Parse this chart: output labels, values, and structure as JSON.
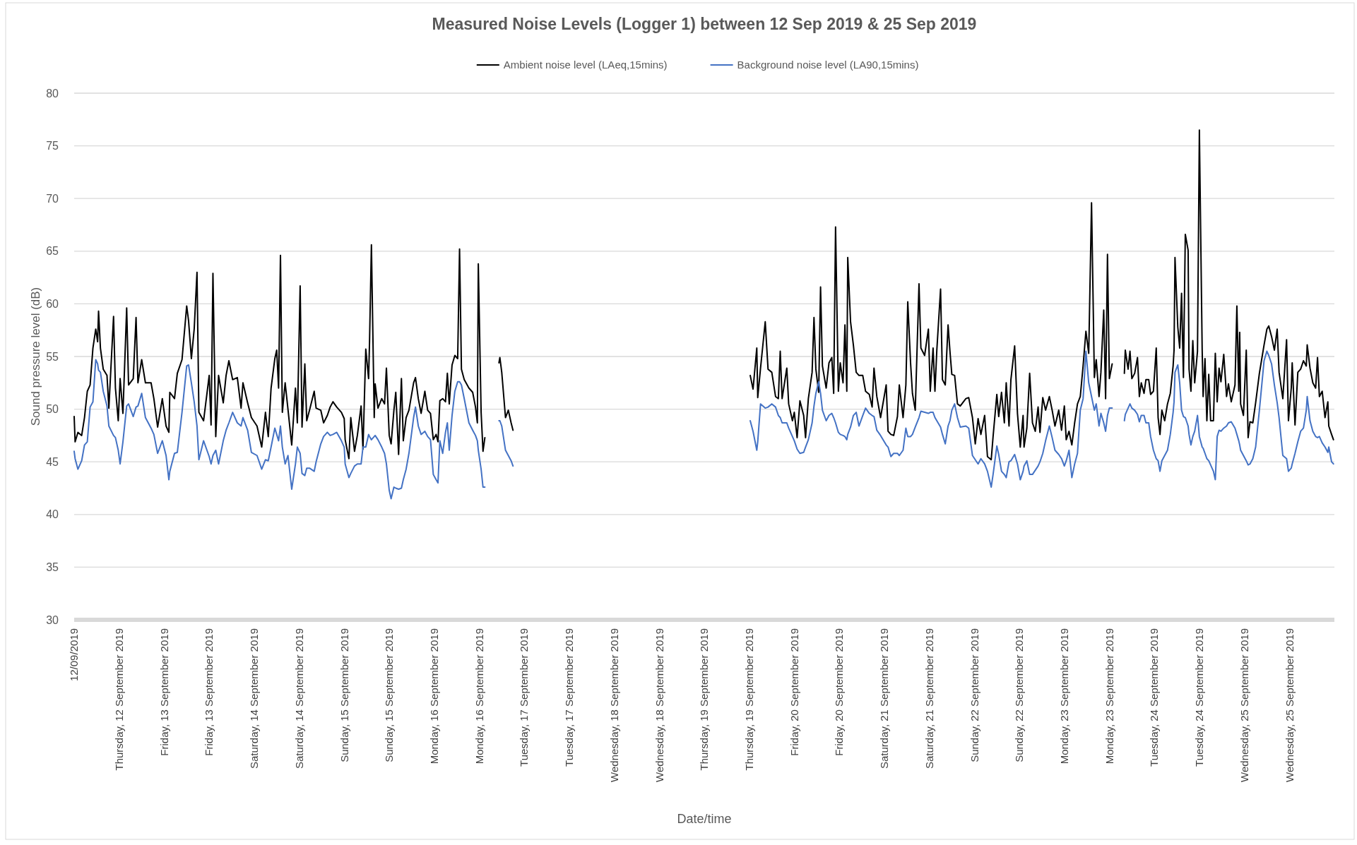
{
  "chart_data": {
    "type": "line",
    "title": "Measured Noise Levels (Logger 1) between 12 Sep 2019 & 25 Sep 2019",
    "xlabel": "Date/time",
    "ylabel": "Sound pressure level (dB)",
    "legend": "top",
    "grid": "y",
    "ylim": [
      30,
      80
    ],
    "yticks": [
      30,
      35,
      40,
      45,
      50,
      55,
      60,
      65,
      70,
      75,
      80
    ],
    "xlim": [
      "2019-09-12T00:00",
      "2019-09-26T00:00"
    ],
    "xticks": [
      {
        "value": "2019-09-12T00:00",
        "label": "12/09/2019"
      },
      {
        "value": "2019-09-12T12:00",
        "label": "Thursday, 12 September 2019"
      },
      {
        "value": "2019-09-13T00:00",
        "label": "Friday, 13 September 2019"
      },
      {
        "value": "2019-09-13T12:00",
        "label": "Friday, 13 September 2019"
      },
      {
        "value": "2019-09-14T00:00",
        "label": "Saturday, 14 September 2019"
      },
      {
        "value": "2019-09-14T12:00",
        "label": "Saturday, 14 September 2019"
      },
      {
        "value": "2019-09-15T00:00",
        "label": "Sunday, 15 September 2019"
      },
      {
        "value": "2019-09-15T12:00",
        "label": "Sunday, 15 September 2019"
      },
      {
        "value": "2019-09-16T00:00",
        "label": "Monday, 16 September 2019"
      },
      {
        "value": "2019-09-16T12:00",
        "label": "Monday, 16 September 2019"
      },
      {
        "value": "2019-09-17T00:00",
        "label": "Tuesday, 17 September 2019"
      },
      {
        "value": "2019-09-17T12:00",
        "label": "Tuesday, 17 September 2019"
      },
      {
        "value": "2019-09-18T00:00",
        "label": "Wednesday, 18 September 2019"
      },
      {
        "value": "2019-09-18T12:00",
        "label": "Wednesday, 18 September 2019"
      },
      {
        "value": "2019-09-19T00:00",
        "label": "Thursday, 19 September 2019"
      },
      {
        "value": "2019-09-19T12:00",
        "label": "Thursday, 19 September 2019"
      },
      {
        "value": "2019-09-20T00:00",
        "label": "Friday, 20 September 2019"
      },
      {
        "value": "2019-09-20T12:00",
        "label": "Friday, 20 September 2019"
      },
      {
        "value": "2019-09-21T00:00",
        "label": "Saturday, 21 September 2019"
      },
      {
        "value": "2019-09-21T12:00",
        "label": "Saturday, 21 September 2019"
      },
      {
        "value": "2019-09-22T00:00",
        "label": "Sunday, 22 September 2019"
      },
      {
        "value": "2019-09-22T12:00",
        "label": "Sunday, 22 September 2019"
      },
      {
        "value": "2019-09-23T00:00",
        "label": "Monday, 23 September 2019"
      },
      {
        "value": "2019-09-23T12:00",
        "label": "Monday, 23 September 2019"
      },
      {
        "value": "2019-09-24T00:00",
        "label": "Tuesday, 24 September 2019"
      },
      {
        "value": "2019-09-24T12:00",
        "label": "Tuesday, 24 September 2019"
      },
      {
        "value": "2019-09-25T00:00",
        "label": "Wednesday, 25 September 2019"
      },
      {
        "value": "2019-09-25T12:00",
        "label": "Wednesday, 25 September 2019"
      }
    ],
    "x": [
      "2019-09-12T00:00",
      "2019-09-12T00:15",
      "2019-09-12T01:00",
      "2019-09-12T02:00",
      "2019-09-12T02:45",
      "2019-09-12T03:30",
      "2019-09-12T04:15",
      "2019-09-12T05:00",
      "2019-09-12T05:45",
      "2019-09-12T06:15",
      "2019-09-12T06:30",
      "2019-09-12T07:00",
      "2019-09-12T07:45",
      "2019-09-12T08:45",
      "2019-09-12T09:15",
      "2019-09-12T10:30",
      "2019-09-12T11:00",
      "2019-09-12T11:45",
      "2019-09-12T12:15",
      "2019-09-12T13:00",
      "2019-09-12T14:00",
      "2019-09-12T14:30",
      "2019-09-12T15:45",
      "2019-09-12T16:30",
      "2019-09-12T17:00",
      "2019-09-12T18:00",
      "2019-09-12T19:00",
      "2019-09-12T20:30",
      "2019-09-12T21:15",
      "2019-09-12T22:15",
      "2019-09-12T23:30",
      "2019-09-13T00:30",
      "2019-09-13T01:15",
      "2019-09-13T01:30",
      "2019-09-13T02:45",
      "2019-09-13T03:30",
      "2019-09-13T04:45",
      "2019-09-13T06:00",
      "2019-09-13T06:30",
      "2019-09-13T07:15",
      "2019-09-13T08:00",
      "2019-09-13T08:45",
      "2019-09-13T09:15",
      "2019-09-13T10:30",
      "2019-09-13T12:00",
      "2019-09-13T12:30",
      "2019-09-13T13:00",
      "2019-09-13T13:45",
      "2019-09-13T14:30",
      "2019-09-13T15:45",
      "2019-09-13T16:30",
      "2019-09-13T17:15",
      "2019-09-13T18:15",
      "2019-09-13T19:30",
      "2019-09-13T20:30",
      "2019-09-13T21:00",
      "2019-09-13T22:15",
      "2019-09-13T23:15",
      "2019-09-14T00:45",
      "2019-09-14T02:00",
      "2019-09-14T03:00",
      "2019-09-14T03:45",
      "2019-09-14T04:30",
      "2019-09-14T05:30",
      "2019-09-14T06:00",
      "2019-09-14T06:30",
      "2019-09-14T07:00",
      "2019-09-14T07:30",
      "2019-09-14T08:15",
      "2019-09-14T09:00",
      "2019-09-14T10:00",
      "2019-09-14T11:00",
      "2019-09-14T11:30",
      "2019-09-14T12:15",
      "2019-09-14T12:45",
      "2019-09-14T13:30",
      "2019-09-14T14:00",
      "2019-09-14T14:45",
      "2019-09-14T16:00",
      "2019-09-14T16:30",
      "2019-09-14T17:45",
      "2019-09-14T18:30",
      "2019-09-14T19:30",
      "2019-09-14T20:15",
      "2019-09-14T21:00",
      "2019-09-14T22:00",
      "2019-09-14T23:15",
      "2019-09-15T00:00",
      "2019-09-15T00:15",
      "2019-09-15T01:15",
      "2019-09-15T01:45",
      "2019-09-15T02:45",
      "2019-09-15T03:30",
      "2019-09-15T04:30",
      "2019-09-15T05:00",
      "2019-09-15T05:45",
      "2019-09-15T06:30",
      "2019-09-15T06:45",
      "2019-09-15T07:15",
      "2019-09-15T08:00",
      "2019-09-15T08:15",
      "2019-09-15T09:00",
      "2019-09-15T10:00",
      "2019-09-15T10:45",
      "2019-09-15T11:15",
      "2019-09-15T12:00",
      "2019-09-15T12:30",
      "2019-09-15T13:15",
      "2019-09-15T13:45",
      "2019-09-15T14:30",
      "2019-09-15T15:15",
      "2019-09-15T15:45",
      "2019-09-15T16:30",
      "2019-09-15T17:15",
      "2019-09-15T18:30",
      "2019-09-15T19:00",
      "2019-09-15T19:45",
      "2019-09-15T20:30",
      "2019-09-15T21:30",
      "2019-09-15T22:15",
      "2019-09-15T23:00",
      "2019-09-15T23:45",
      "2019-09-16T00:30",
      "2019-09-16T01:00",
      "2019-09-16T01:30",
      "2019-09-16T02:15",
      "2019-09-16T03:00",
      "2019-09-16T03:30",
      "2019-09-16T04:00",
      "2019-09-16T04:45",
      "2019-09-16T05:30",
      "2019-09-16T06:15",
      "2019-09-16T06:45",
      "2019-09-16T07:15",
      "2019-09-16T08:00",
      "2019-09-16T09:15",
      "2019-09-16T10:15",
      "2019-09-16T11:00",
      "2019-09-16T11:30",
      "2019-09-16T11:45",
      "2019-09-16T12:30",
      "2019-09-16T13:00",
      "2019-09-16T13:30",
      "2019-09-16T15:00",
      "2019-09-16T17:15",
      "2019-09-16T17:30",
      "2019-09-16T18:00",
      "2019-09-16T19:00",
      "2019-09-16T19:45",
      "2019-09-16T20:30",
      "2019-09-16T21:00",
      "2019-09-18T06:00",
      "2019-09-19T12:15",
      "2019-09-19T13:00",
      "2019-09-19T14:00",
      "2019-09-19T14:15",
      "2019-09-19T15:00",
      "2019-09-19T16:15",
      "2019-09-19T17:00",
      "2019-09-19T18:00",
      "2019-09-19T19:00",
      "2019-09-19T19:45",
      "2019-09-19T20:15",
      "2019-09-19T20:45",
      "2019-09-19T22:00",
      "2019-09-19T22:30",
      "2019-09-19T23:30",
      "2019-09-20T00:00",
      "2019-09-20T00:45",
      "2019-09-20T01:30",
      "2019-09-20T02:30",
      "2019-09-20T03:00",
      "2019-09-20T03:45",
      "2019-09-20T04:45",
      "2019-09-20T05:15",
      "2019-09-20T05:45",
      "2019-09-20T06:30",
      "2019-09-20T07:00",
      "2019-09-20T07:30",
      "2019-09-20T08:30",
      "2019-09-20T09:15",
      "2019-09-20T10:00",
      "2019-09-20T10:30",
      "2019-09-20T11:00",
      "2019-09-20T11:45",
      "2019-09-20T12:15",
      "2019-09-20T13:00",
      "2019-09-20T13:30",
      "2019-09-20T14:00",
      "2019-09-20T14:15",
      "2019-09-20T15:00",
      "2019-09-20T15:45",
      "2019-09-20T16:30",
      "2019-09-20T17:15",
      "2019-09-20T18:15",
      "2019-09-20T19:00",
      "2019-09-20T20:00",
      "2019-09-20T20:45",
      "2019-09-20T21:15",
      "2019-09-20T22:00",
      "2019-09-20T23:00",
      "2019-09-21T00:30",
      "2019-09-21T01:00",
      "2019-09-21T01:45",
      "2019-09-21T02:30",
      "2019-09-21T03:30",
      "2019-09-21T04:00",
      "2019-09-21T05:00",
      "2019-09-21T05:45",
      "2019-09-21T06:15",
      "2019-09-21T07:00",
      "2019-09-21T07:30",
      "2019-09-21T08:15",
      "2019-09-21T09:15",
      "2019-09-21T09:45",
      "2019-09-21T10:45",
      "2019-09-21T11:45",
      "2019-09-21T12:15",
      "2019-09-21T13:00",
      "2019-09-21T13:30",
      "2019-09-21T14:00",
      "2019-09-21T15:00",
      "2019-09-21T15:30",
      "2019-09-21T16:15",
      "2019-09-21T17:00",
      "2019-09-21T17:30",
      "2019-09-21T18:00",
      "2019-09-21T18:45",
      "2019-09-21T19:30",
      "2019-09-21T20:15",
      "2019-09-21T21:45",
      "2019-09-21T22:30",
      "2019-09-21T23:30",
      "2019-09-22T00:15",
      "2019-09-22T01:00",
      "2019-09-22T01:45",
      "2019-09-22T02:45",
      "2019-09-22T03:30",
      "2019-09-22T04:30",
      "2019-09-22T05:00",
      "2019-09-22T06:00",
      "2019-09-22T06:30",
      "2019-09-22T07:15",
      "2019-09-22T08:00",
      "2019-09-22T08:30",
      "2019-09-22T09:15",
      "2019-09-22T09:45",
      "2019-09-22T10:45",
      "2019-09-22T11:30",
      "2019-09-22T12:15",
      "2019-09-22T13:00",
      "2019-09-22T13:15",
      "2019-09-22T14:00",
      "2019-09-22T14:45",
      "2019-09-22T15:30",
      "2019-09-22T16:15",
      "2019-09-22T17:00",
      "2019-09-22T17:30",
      "2019-09-22T18:15",
      "2019-09-22T19:00",
      "2019-09-22T20:00",
      "2019-09-22T20:45",
      "2019-09-22T21:30",
      "2019-09-22T22:30",
      "2019-09-22T23:15",
      "2019-09-23T00:00",
      "2019-09-23T00:30",
      "2019-09-23T01:15",
      "2019-09-23T02:00",
      "2019-09-23T02:45",
      "2019-09-23T03:30",
      "2019-09-23T04:15",
      "2019-09-23T05:00",
      "2019-09-23T05:45",
      "2019-09-23T06:30",
      "2019-09-23T07:15",
      "2019-09-23T08:00",
      "2019-09-23T08:30",
      "2019-09-23T09:15",
      "2019-09-23T09:45",
      "2019-09-23T10:30",
      "2019-09-23T11:00",
      "2019-09-23T11:30",
      "2019-09-23T12:00",
      "2019-09-23T12:45",
      "2019-09-23T14:00",
      "2019-09-23T16:00",
      "2019-09-23T16:15",
      "2019-09-23T17:00",
      "2019-09-23T17:30",
      "2019-09-23T18:00",
      "2019-09-23T18:45",
      "2019-09-23T19:30",
      "2019-09-23T20:00",
      "2019-09-23T20:30",
      "2019-09-23T21:15",
      "2019-09-23T21:45",
      "2019-09-23T22:30",
      "2019-09-23T23:00",
      "2019-09-23T23:45",
      "2019-09-24T00:30",
      "2019-09-24T01:00",
      "2019-09-24T01:30",
      "2019-09-24T02:00",
      "2019-09-24T02:45",
      "2019-09-24T03:30",
      "2019-09-24T04:15",
      "2019-09-24T05:00",
      "2019-09-24T05:15",
      "2019-09-24T05:30",
      "2019-09-24T06:15",
      "2019-09-24T06:45",
      "2019-09-24T07:15",
      "2019-09-24T07:45",
      "2019-09-24T08:15",
      "2019-09-24T09:00",
      "2019-09-24T09:15",
      "2019-09-24T09:45",
      "2019-09-24T10:15",
      "2019-09-24T10:45",
      "2019-09-24T11:30",
      "2019-09-24T12:00",
      "2019-09-24T12:45",
      "2019-09-24T13:00",
      "2019-09-24T13:30",
      "2019-09-24T14:00",
      "2019-09-24T14:30",
      "2019-09-24T15:00",
      "2019-09-24T15:45",
      "2019-09-24T16:15",
      "2019-09-24T16:45",
      "2019-09-24T17:15",
      "2019-09-24T17:45",
      "2019-09-24T18:30",
      "2019-09-24T19:15",
      "2019-09-24T19:45",
      "2019-09-24T20:30",
      "2019-09-24T21:30",
      "2019-09-24T22:00",
      "2019-09-24T22:30",
      "2019-09-24T22:45",
      "2019-09-24T23:00",
      "2019-09-24T23:45",
      "2019-09-25T00:30",
      "2019-09-25T01:00",
      "2019-09-25T01:30",
      "2019-09-25T02:15",
      "2019-09-25T03:00",
      "2019-09-25T04:00",
      "2019-09-25T05:15",
      "2019-09-25T06:00",
      "2019-09-25T06:30",
      "2019-09-25T07:15",
      "2019-09-25T08:00",
      "2019-09-25T08:45",
      "2019-09-25T09:15",
      "2019-09-25T10:15",
      "2019-09-25T11:15",
      "2019-09-25T11:45",
      "2019-09-25T12:30",
      "2019-09-25T12:45",
      "2019-09-25T13:30",
      "2019-09-25T14:15",
      "2019-09-25T15:00",
      "2019-09-25T15:45",
      "2019-09-25T16:30",
      "2019-09-25T16:45",
      "2019-09-25T17:30",
      "2019-09-25T18:15",
      "2019-09-25T19:00",
      "2019-09-25T19:30",
      "2019-09-25T20:00",
      "2019-09-25T20:45",
      "2019-09-25T21:30",
      "2019-09-25T22:15",
      "2019-09-25T22:30",
      "2019-09-25T23:15",
      "2019-09-25T23:45"
    ],
    "series": [
      {
        "name": "Ambient noise level (LAeq,15mins)",
        "color": "#000000",
        "values": [
          49.3,
          46.9,
          47.8,
          47.5,
          49.2,
          51.7,
          52.3,
          55.8,
          57.6,
          56.4,
          59.3,
          55.8,
          53.8,
          53.2,
          50.1,
          58.8,
          52.0,
          48.9,
          52.9,
          49.6,
          59.6,
          52.3,
          52.9,
          58.7,
          52.5,
          54.7,
          52.5,
          52.5,
          51.0,
          48.3,
          51.0,
          48.4,
          47.8,
          51.6,
          51.0,
          53.4,
          54.7,
          59.8,
          58.4,
          54.8,
          57.6,
          63.0,
          49.7,
          48.9,
          53.2,
          48.5,
          62.9,
          47.4,
          53.2,
          50.6,
          53.2,
          54.6,
          52.8,
          53.0,
          50.1,
          52.5,
          50.6,
          49.2,
          48.4,
          46.4,
          49.7,
          47.4,
          52.0,
          54.8,
          55.6,
          52.0,
          64.6,
          49.7,
          52.5,
          50.0,
          46.6,
          52.0,
          48.7,
          61.7,
          48.3,
          54.3,
          48.9,
          49.9,
          51.7,
          50.1,
          49.9,
          48.7,
          49.4,
          50.2,
          50.7,
          50.2,
          49.7,
          49.1,
          47.1,
          45.3,
          49.2,
          46.0,
          47.5,
          50.3,
          46.2,
          55.7,
          52.9,
          56.4,
          65.6,
          49.2,
          52.4,
          50.1,
          51.0,
          50.5,
          53.9,
          47.5,
          46.7,
          49.9,
          51.6,
          45.7,
          52.9,
          47.0,
          49.2,
          49.9,
          52.5,
          53.0,
          51.0,
          49.6,
          51.7,
          49.9,
          49.6,
          47.1,
          47.6,
          46.9,
          50.8,
          51.0,
          50.7,
          53.4,
          50.5,
          54.2,
          55.1,
          54.8,
          65.2,
          53.8,
          52.8,
          52.0,
          51.6,
          50.2,
          48.7,
          63.8,
          49.7,
          46.0,
          47.3,
          null,
          54.4,
          54.9,
          53.5,
          49.2,
          49.9,
          48.7,
          48.0,
          null,
          53.2,
          51.9,
          55.8,
          51.1,
          53.9,
          58.3,
          53.8,
          53.5,
          51.2,
          51.0,
          55.5,
          51.0,
          53.9,
          50.5,
          48.9,
          49.7,
          47.3,
          50.8,
          49.4,
          47.3,
          51.0,
          53.5,
          58.7,
          53.8,
          51.6,
          61.6,
          54.1,
          52.0,
          54.4,
          54.9,
          51.5,
          67.3,
          51.7,
          54.4,
          52.5,
          58.0,
          51.7,
          64.4,
          58.3,
          56.1,
          53.5,
          53.2,
          53.2,
          51.7,
          51.4,
          50.2,
          53.9,
          51.2,
          49.2,
          52.3,
          47.9,
          47.6,
          47.5,
          49.3,
          52.3,
          49.2,
          52.3,
          60.2,
          54.4,
          51.5,
          49.9,
          61.9,
          55.8,
          55.1,
          57.6,
          51.7,
          55.8,
          51.7,
          55.6,
          61.4,
          52.8,
          52.3,
          58.0,
          55.5,
          53.3,
          53.2,
          50.5,
          50.3,
          51.0,
          51.1,
          49.2,
          46.7,
          49.1,
          47.6,
          49.4,
          45.5,
          45.2,
          47.4,
          51.4,
          49.3,
          51.6,
          48.7,
          52.5,
          48.4,
          52.8,
          56.0,
          49.6,
          46.4,
          49.4,
          46.4,
          48.2,
          53.4,
          48.7,
          47.9,
          50.2,
          47.8,
          51.1,
          49.9,
          51.2,
          49.9,
          48.4,
          49.9,
          48.0,
          50.3,
          47.1,
          47.9,
          46.6,
          48.7,
          50.5,
          51.2,
          54.1,
          57.4,
          55.3,
          69.6,
          53.0,
          54.7,
          51.2,
          53.5,
          59.4,
          51.0,
          64.7,
          52.9,
          54.3,
          null,
          53.4,
          55.6,
          53.8,
          55.5,
          52.9,
          53.4,
          54.9,
          51.2,
          52.5,
          51.5,
          52.8,
          52.8,
          51.4,
          51.7,
          55.8,
          49.2,
          47.6,
          49.9,
          48.9,
          50.5,
          51.5,
          54.1,
          55.6,
          64.4,
          57.8,
          55.8,
          61.0,
          53.0,
          66.6,
          65.1,
          53.8,
          51.7,
          56.5,
          52.5,
          55.5,
          76.5,
          55.6,
          51.2,
          54.8,
          48.9,
          53.3,
          48.9,
          48.9,
          55.3,
          50.7,
          53.9,
          52.6,
          55.2,
          51.2,
          52.4,
          50.7,
          52.3,
          59.8,
          51.7,
          57.3,
          50.5,
          49.4,
          55.6,
          47.3,
          48.8,
          48.7,
          50.6,
          53.4,
          56.1,
          57.6,
          57.9,
          56.9,
          55.6,
          57.6,
          53.5,
          51.0,
          56.6,
          48.9,
          52.0,
          54.4,
          48.5,
          53.5,
          53.8,
          54.6,
          54.1,
          56.1,
          53.9,
          52.5,
          52.0,
          54.9,
          51.2,
          51.7,
          49.2,
          50.7,
          48.4,
          47.6,
          47.1
        ]
      },
      {
        "name": "Background noise level (LA90,15mins)",
        "color": "#4472c4",
        "values": [
          46.0,
          45.3,
          44.3,
          45.1,
          46.6,
          46.9,
          50.2,
          50.7,
          54.7,
          54.3,
          53.7,
          53.5,
          51.7,
          50.3,
          48.4,
          47.5,
          47.3,
          46.1,
          44.8,
          46.9,
          50.3,
          50.5,
          49.3,
          50.2,
          50.3,
          51.5,
          49.2,
          48.2,
          47.6,
          45.8,
          47.0,
          45.6,
          43.3,
          44.1,
          45.8,
          45.9,
          49.7,
          54.1,
          54.2,
          52.5,
          50.7,
          48.4,
          45.2,
          47.0,
          45.5,
          44.8,
          45.6,
          46.1,
          44.8,
          47.0,
          48.0,
          48.7,
          49.7,
          48.7,
          48.4,
          49.2,
          48.0,
          45.9,
          45.6,
          44.3,
          45.2,
          45.1,
          46.4,
          48.2,
          47.6,
          47.0,
          48.4,
          46.4,
          44.8,
          45.6,
          42.4,
          44.8,
          46.4,
          45.8,
          43.9,
          43.7,
          44.4,
          44.4,
          44.1,
          45.0,
          46.7,
          47.4,
          47.8,
          47.5,
          47.6,
          47.8,
          47.0,
          46.4,
          44.8,
          43.5,
          43.9,
          44.6,
          44.8,
          44.8,
          46.4,
          46.4,
          47.6,
          47.4,
          47.1,
          47.4,
          47.5,
          47.1,
          46.4,
          45.8,
          44.8,
          42.3,
          41.5,
          42.6,
          42.5,
          42.4,
          42.5,
          43.3,
          44.3,
          45.8,
          49.2,
          50.2,
          48.4,
          47.6,
          47.9,
          47.4,
          47.1,
          43.8,
          43.3,
          43.0,
          47.0,
          45.8,
          47.8,
          48.7,
          46.1,
          49.4,
          51.7,
          52.6,
          52.6,
          52.3,
          51.0,
          48.7,
          48.0,
          47.5,
          47.0,
          46.1,
          44.3,
          42.6,
          42.6,
          null,
          48.9,
          48.9,
          48.4,
          46.1,
          45.6,
          45.1,
          44.6,
          null,
          48.9,
          47.9,
          46.1,
          46.9,
          50.5,
          50.1,
          50.2,
          50.5,
          50.2,
          49.4,
          49.2,
          48.7,
          48.7,
          48.2,
          47.4,
          47.0,
          46.2,
          45.8,
          45.9,
          46.4,
          47.1,
          48.7,
          50.3,
          51.5,
          52.6,
          51.5,
          49.9,
          48.9,
          49.4,
          49.6,
          49.2,
          48.7,
          47.8,
          47.6,
          47.5,
          47.4,
          47.1,
          47.6,
          48.3,
          49.4,
          49.7,
          48.4,
          49.4,
          50.1,
          49.6,
          49.4,
          49.3,
          48.0,
          47.5,
          46.6,
          46.4,
          45.5,
          45.8,
          45.8,
          45.6,
          46.1,
          48.2,
          47.4,
          47.4,
          47.6,
          48.3,
          49.2,
          49.8,
          49.7,
          49.6,
          49.7,
          49.7,
          49.2,
          48.9,
          48.3,
          47.6,
          46.7,
          48.4,
          48.9,
          49.9,
          50.5,
          49.2,
          48.3,
          48.4,
          48.2,
          45.6,
          45.2,
          44.8,
          45.3,
          44.8,
          44.1,
          42.6,
          43.8,
          46.5,
          45.7,
          44.1,
          43.8,
          43.5,
          45.0,
          45.1,
          45.7,
          44.8,
          43.3,
          44.1,
          44.6,
          45.1,
          43.8,
          43.8,
          44.2,
          44.6,
          45.0,
          45.8,
          47.0,
          48.4,
          47.3,
          46.1,
          45.7,
          45.3,
          44.6,
          45.1,
          46.1,
          43.5,
          44.8,
          45.8,
          49.9,
          51.0,
          55.5,
          52.5,
          51.2,
          49.9,
          50.5,
          48.4,
          49.6,
          48.7,
          47.9,
          49.4,
          50.1,
          50.1,
          null,
          48.9,
          49.5,
          50.1,
          50.5,
          50.1,
          49.9,
          49.5,
          48.8,
          49.4,
          49.4,
          48.7,
          48.7,
          47.4,
          46.1,
          45.3,
          45.1,
          44.1,
          45.1,
          45.6,
          46.1,
          47.6,
          49.7,
          50.7,
          53.5,
          54.2,
          52.5,
          49.9,
          49.3,
          49.2,
          48.4,
          47.6,
          46.6,
          47.4,
          47.9,
          49.4,
          47.4,
          46.4,
          46.3,
          45.8,
          45.3,
          45.1,
          44.7,
          44.1,
          43.3,
          47.4,
          48.0,
          47.9,
          48.2,
          48.4,
          48.7,
          48.8,
          48.2,
          47.6,
          47.0,
          46.6,
          46.1,
          45.6,
          45.1,
          44.7,
          44.8,
          45.3,
          46.4,
          49.9,
          54.6,
          55.5,
          55.1,
          54.3,
          52.3,
          50.6,
          49.2,
          45.6,
          45.3,
          44.1,
          44.4,
          44.8,
          45.8,
          46.9,
          47.9,
          48.2,
          49.9,
          51.2,
          48.9,
          47.9,
          47.4,
          47.3,
          47.4,
          46.8,
          46.4,
          45.9,
          46.4,
          45.0,
          44.8
        ]
      }
    ]
  }
}
